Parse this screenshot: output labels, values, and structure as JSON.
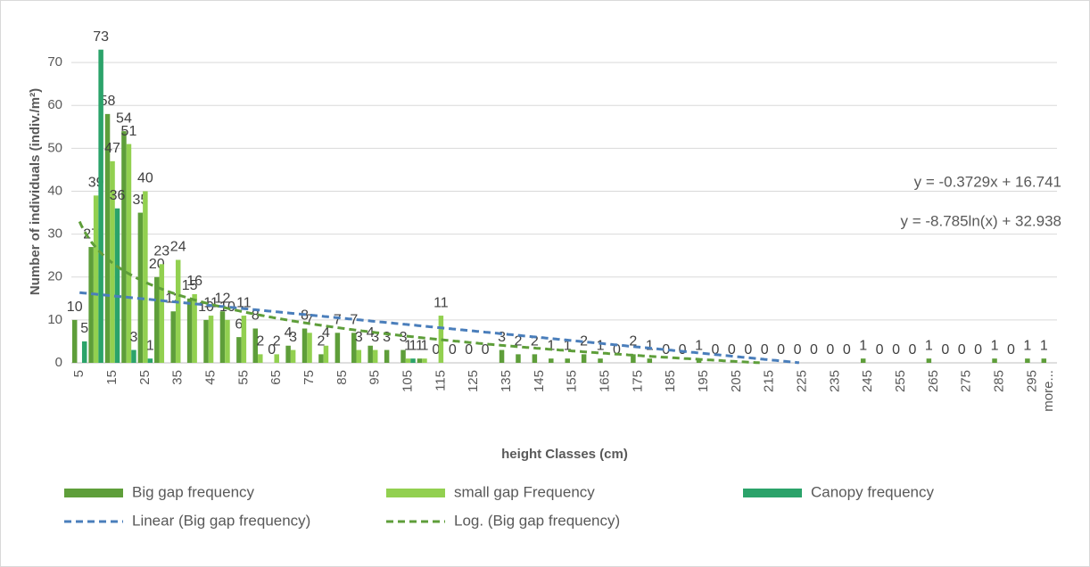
{
  "chart_data": {
    "type": "bar",
    "y_label": "Number of individuals (indiv./m²)",
    "x_label": "height Classes (cm)",
    "categories": [
      "5",
      null,
      "15",
      null,
      "25",
      null,
      "35",
      null,
      "45",
      null,
      "55",
      null,
      "65",
      null,
      "75",
      null,
      "85",
      null,
      "95",
      null,
      "105",
      null,
      "115",
      null,
      "125",
      null,
      "135",
      null,
      "145",
      null,
      "155",
      null,
      "165",
      null,
      "175",
      null,
      "185",
      null,
      "195",
      null,
      "205",
      null,
      "215",
      null,
      "225",
      null,
      "235",
      null,
      "245",
      null,
      "255",
      null,
      "265",
      null,
      "275",
      null,
      "285",
      null,
      "295",
      "more..."
    ],
    "series": [
      {
        "name": "Big gap frequency",
        "color": "#5e9e3a",
        "values": [
          10,
          27,
          58,
          54,
          35,
          20,
          12,
          15,
          10,
          12,
          6,
          8,
          0,
          4,
          8,
          2,
          7,
          7,
          4,
          3,
          3,
          1,
          0,
          0,
          0,
          0,
          3,
          2,
          2,
          1,
          1,
          2,
          1,
          0,
          2,
          1,
          0,
          0,
          1,
          0,
          0,
          0,
          0,
          0,
          0,
          0,
          0,
          0,
          1,
          0,
          0,
          0,
          1,
          0,
          0,
          0,
          1,
          0,
          1,
          1
        ]
      },
      {
        "name": "small gap Frequency",
        "color": "#92d050",
        "values": [
          0,
          39,
          47,
          51,
          40,
          23,
          24,
          16,
          11,
          10,
          11,
          2,
          2,
          3,
          7,
          4,
          0,
          3,
          3,
          0,
          1,
          1,
          11,
          0,
          0,
          0,
          0,
          0,
          0,
          0,
          0,
          0,
          0,
          0,
          0,
          0,
          0,
          0,
          0,
          0,
          0,
          0,
          0,
          0,
          0,
          0,
          0,
          0,
          0,
          0,
          0,
          0,
          0,
          0,
          0,
          0,
          0,
          0,
          0,
          0
        ]
      },
      {
        "name": "Canopy frequency",
        "color": "#2ba36a",
        "values": [
          5,
          73,
          36,
          3,
          1,
          0,
          0,
          0,
          0,
          0,
          0,
          0,
          0,
          0,
          0,
          0,
          0,
          0,
          0,
          0,
          1,
          0,
          0,
          0,
          0,
          0,
          0,
          0,
          0,
          0,
          0,
          0,
          0,
          0,
          0,
          0,
          0,
          0,
          0,
          0,
          0,
          0,
          0,
          0,
          0,
          0,
          0,
          0,
          0,
          0,
          0,
          0,
          0,
          0,
          0,
          0,
          0,
          0,
          0,
          0
        ]
      }
    ],
    "trendlines": [
      {
        "name": "Linear (Big gap frequency)",
        "kind": "linear",
        "color": "#4a7ebb",
        "equation": "y = -0.3729x + 16.741",
        "slope": -0.3729,
        "intercept": 16.741
      },
      {
        "name": "Log. (Big gap frequency)",
        "kind": "log",
        "color": "#5e9e3a",
        "equation": "y = -8.785ln(x) + 32.938",
        "slope": -8.785,
        "intercept": 32.938
      }
    ],
    "ylim": [
      0,
      80
    ],
    "yticks": [
      0,
      10,
      20,
      30,
      40,
      50,
      60,
      70
    ],
    "grid": true,
    "legend": "bottom"
  }
}
